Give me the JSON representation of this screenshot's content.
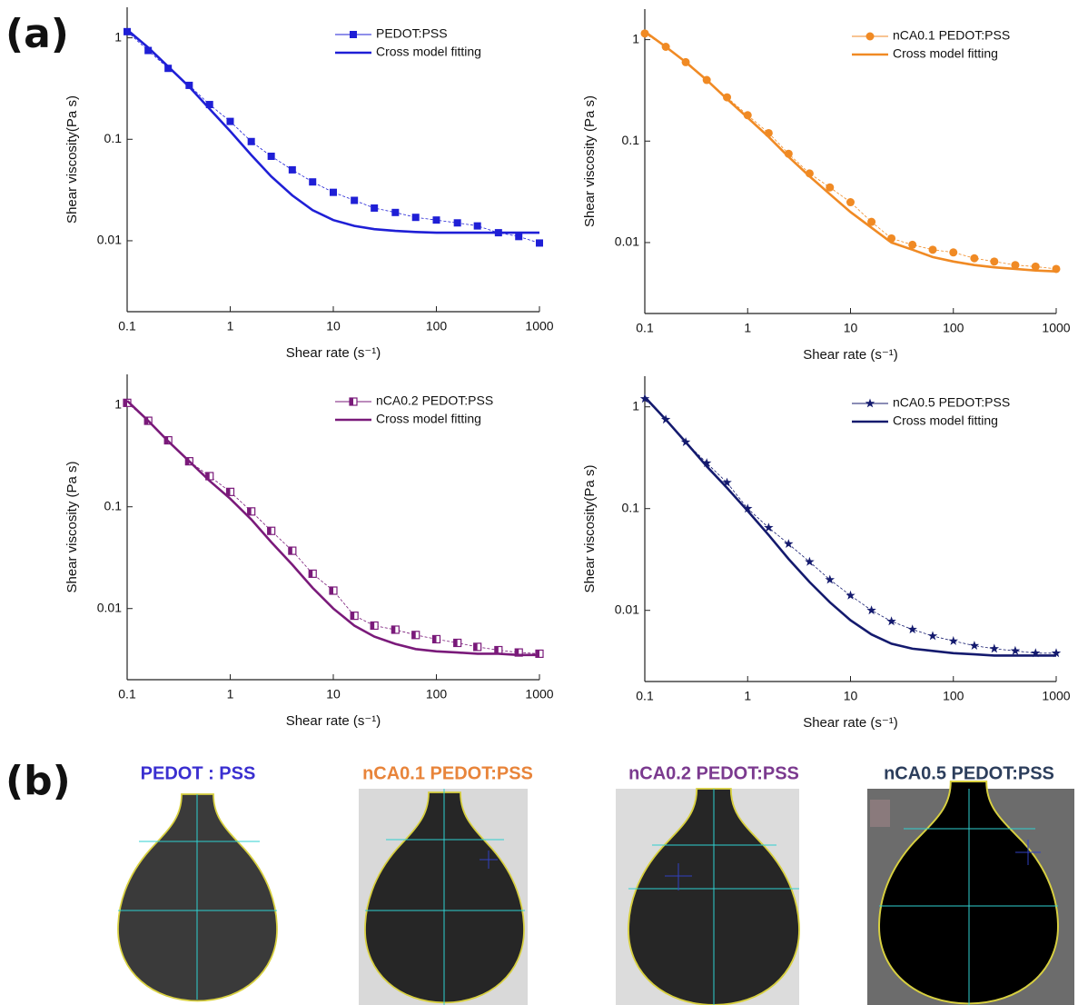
{
  "chart_data": [
    {
      "type": "line",
      "x_label": "Shear rate (s⁻¹)",
      "y_label": "Shear viscosity(Pa s)",
      "x_log": true,
      "y_log": true,
      "legend": "upper right",
      "x": [
        0.1,
        0.16,
        0.25,
        0.4,
        0.63,
        1,
        1.6,
        2.5,
        4,
        6.3,
        10,
        16,
        25,
        40,
        63,
        100,
        160,
        250,
        400,
        630,
        1000
      ],
      "series": [
        {
          "name": "PEDOT:PSS",
          "color": "#1f1fd6",
          "marker": "square",
          "values": [
            1.15,
            0.75,
            0.5,
            0.34,
            0.22,
            0.15,
            0.095,
            0.068,
            0.05,
            0.038,
            0.03,
            0.025,
            0.021,
            0.019,
            0.017,
            0.016,
            0.015,
            0.014,
            0.012,
            0.011,
            0.0095
          ]
        },
        {
          "name": "Cross model fitting",
          "color": "#1f1fd6",
          "values": [
            1.2,
            0.8,
            0.52,
            0.33,
            0.2,
            0.12,
            0.07,
            0.043,
            0.028,
            0.02,
            0.016,
            0.014,
            0.013,
            0.0125,
            0.0122,
            0.012,
            0.012,
            0.012,
            0.012,
            0.012,
            0.012
          ]
        }
      ],
      "xlim": [
        0.1,
        1000
      ],
      "ylim": [
        0.002,
        2
      ],
      "xticks": [
        0.1,
        1,
        10,
        100,
        1000
      ],
      "yticks": [
        0.01,
        0.1,
        1
      ]
    },
    {
      "type": "line",
      "x_label": "Shear rate (s⁻¹)",
      "y_label": "Shear viscosity (Pa s)",
      "x_log": true,
      "y_log": true,
      "legend": "upper right",
      "x": [
        0.1,
        0.16,
        0.25,
        0.4,
        0.63,
        1,
        1.6,
        2.5,
        4,
        6.3,
        10,
        16,
        25,
        40,
        63,
        100,
        160,
        250,
        400,
        630,
        1000
      ],
      "series": [
        {
          "name": "nCA0.1 PEDOT:PSS",
          "color": "#f08a24",
          "marker": "circle",
          "values": [
            1.15,
            0.85,
            0.6,
            0.4,
            0.27,
            0.18,
            0.12,
            0.075,
            0.048,
            0.035,
            0.025,
            0.016,
            0.011,
            0.0095,
            0.0085,
            0.008,
            0.007,
            0.0065,
            0.006,
            0.0058,
            0.0055
          ]
        },
        {
          "name": "Cross model fitting",
          "color": "#f08a24",
          "values": [
            1.2,
            0.85,
            0.6,
            0.4,
            0.26,
            0.17,
            0.11,
            0.07,
            0.045,
            0.03,
            0.02,
            0.014,
            0.01,
            0.0085,
            0.0072,
            0.0065,
            0.006,
            0.0057,
            0.0055,
            0.0053,
            0.0052
          ]
        }
      ],
      "xlim": [
        0.1,
        1000
      ],
      "ylim": [
        0.002,
        2
      ],
      "xticks": [
        0.1,
        1,
        10,
        100,
        1000
      ],
      "yticks": [
        0.01,
        0.1,
        1
      ]
    },
    {
      "type": "line",
      "x_label": "Shear rate (s⁻¹)",
      "y_label": "Shear viscosity (Pa s)",
      "x_log": true,
      "y_log": true,
      "legend": "upper right",
      "x": [
        0.1,
        0.16,
        0.25,
        0.4,
        0.63,
        1,
        1.6,
        2.5,
        4,
        6.3,
        10,
        16,
        25,
        40,
        63,
        100,
        160,
        250,
        400,
        630,
        1000
      ],
      "series": [
        {
          "name": "nCA0.2 PEDOT:PSS",
          "color": "#7a1a7a",
          "marker": "half-square",
          "values": [
            1.05,
            0.7,
            0.45,
            0.28,
            0.2,
            0.14,
            0.09,
            0.058,
            0.037,
            0.022,
            0.015,
            0.0085,
            0.0068,
            0.0062,
            0.0055,
            0.005,
            0.0046,
            0.0042,
            0.0039,
            0.0037,
            0.0036
          ]
        },
        {
          "name": "Cross model fitting",
          "color": "#7a1a7a",
          "values": [
            1.1,
            0.7,
            0.44,
            0.28,
            0.18,
            0.12,
            0.075,
            0.045,
            0.027,
            0.016,
            0.01,
            0.0068,
            0.0053,
            0.0045,
            0.004,
            0.0038,
            0.0037,
            0.0036,
            0.0036,
            0.0035,
            0.0035
          ]
        }
      ],
      "xlim": [
        0.1,
        1000
      ],
      "ylim": [
        0.002,
        2
      ],
      "xticks": [
        0.1,
        1,
        10,
        100,
        1000
      ],
      "yticks": [
        0.01,
        0.1,
        1
      ]
    },
    {
      "type": "line",
      "x_label": "Shear rate (s⁻¹)",
      "y_label": "Shear viscosity(Pa s)",
      "x_log": true,
      "y_log": true,
      "legend": "upper right",
      "x": [
        0.1,
        0.16,
        0.25,
        0.4,
        0.63,
        1,
        1.6,
        2.5,
        4,
        6.3,
        10,
        16,
        25,
        40,
        63,
        100,
        160,
        250,
        400,
        630,
        1000
      ],
      "series": [
        {
          "name": "nCA0.5 PEDOT:PSS",
          "color": "#141a6e",
          "marker": "star",
          "values": [
            1.2,
            0.75,
            0.45,
            0.28,
            0.18,
            0.1,
            0.065,
            0.045,
            0.03,
            0.02,
            0.014,
            0.01,
            0.0078,
            0.0065,
            0.0056,
            0.005,
            0.0045,
            0.0042,
            0.004,
            0.0038,
            0.0038
          ]
        },
        {
          "name": "Cross model fitting",
          "color": "#141a6e",
          "values": [
            1.25,
            0.75,
            0.45,
            0.26,
            0.16,
            0.095,
            0.055,
            0.032,
            0.019,
            0.012,
            0.008,
            0.0058,
            0.0047,
            0.0042,
            0.004,
            0.0038,
            0.0037,
            0.0036,
            0.0036,
            0.0036,
            0.0036
          ]
        }
      ],
      "xlim": [
        0.1,
        1000
      ],
      "ylim": [
        0.002,
        2
      ],
      "xticks": [
        0.1,
        1,
        10,
        100,
        1000
      ],
      "yticks": [
        0.01,
        0.1,
        1
      ]
    }
  ],
  "panels": {
    "a": "(a)",
    "b": "(b)"
  },
  "droplets": [
    {
      "label": "PEDOT : PSS",
      "color": "#3a2fd0"
    },
    {
      "label": "nCA0.1 PEDOT:PSS",
      "color": "#e8843a"
    },
    {
      "label": "nCA0.2 PEDOT:PSS",
      "color": "#7b3a8f"
    },
    {
      "label": "nCA0.5 PEDOT:PSS",
      "color": "#2c3e5c"
    }
  ]
}
